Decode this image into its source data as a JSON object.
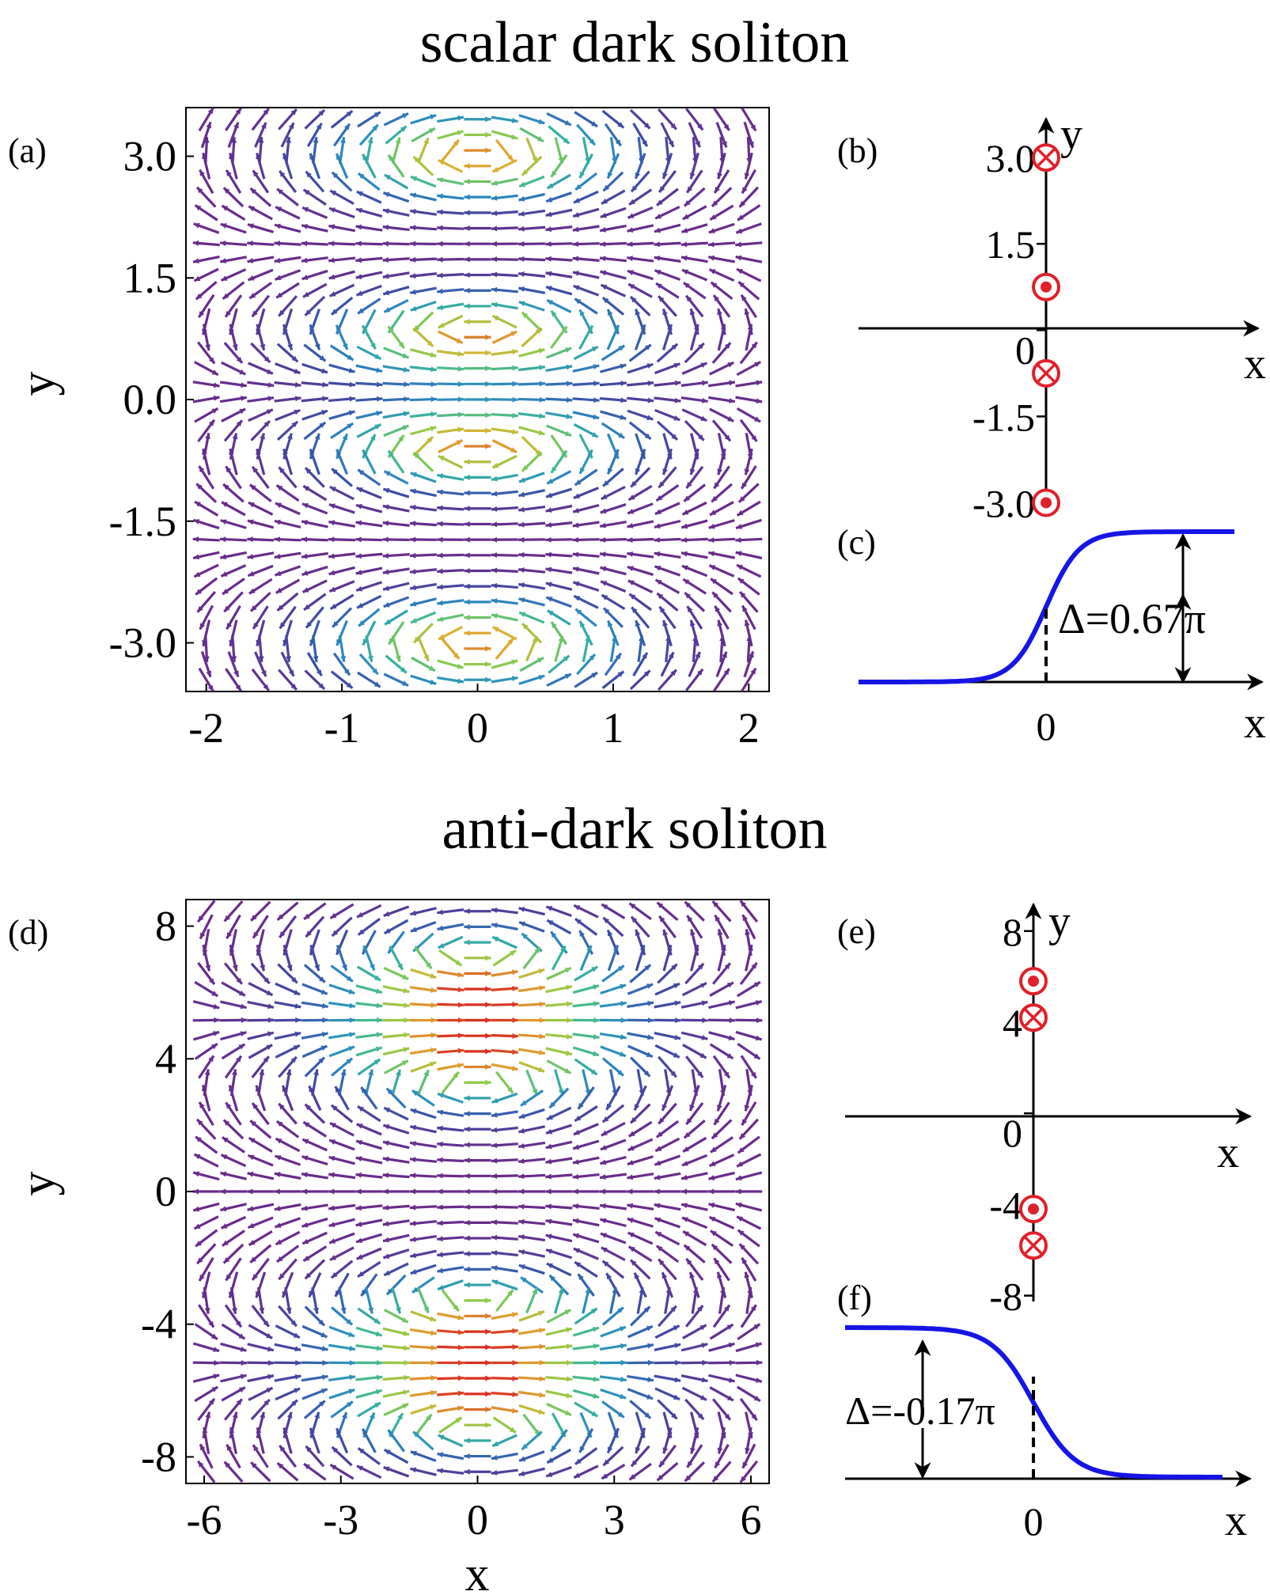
{
  "figure": {
    "top_title": "scalar dark soliton",
    "bottom_title": "anti-dark soliton"
  },
  "chart_data": [
    {
      "id": "a",
      "panel_label": "(a)",
      "type": "quiver",
      "ylabel": "y",
      "xlabel": "",
      "xlim": [
        -2.15,
        2.15
      ],
      "ylim": [
        -3.6,
        3.6
      ],
      "x_ticks": [
        "-2",
        "-1",
        "0",
        "1",
        "2"
      ],
      "x_tick_values": [
        -2,
        -1,
        0,
        1,
        2
      ],
      "y_ticks": [
        "3.0",
        "1.5",
        "0.0",
        "-1.5",
        "-3.0"
      ],
      "y_tick_values": [
        3.0,
        1.5,
        0.0,
        -1.5,
        -3.0
      ],
      "field": {
        "cols": 21,
        "rows": 37,
        "vortices": [
          {
            "x": 0,
            "y": 3.0,
            "sense": -1
          },
          {
            "x": 0,
            "y": 0.75,
            "sense": 1
          },
          {
            "x": 0,
            "y": -0.55,
            "sense": -1
          },
          {
            "x": 0,
            "y": -3.0,
            "sense": 1
          }
        ],
        "core_width": 0.55,
        "period": 2.25,
        "colormap": [
          "#6a2a8a",
          "#3a4fa8",
          "#2a8ac0",
          "#38b59a",
          "#8acb4a",
          "#e0b030",
          "#d83020"
        ]
      }
    },
    {
      "id": "b",
      "panel_label": "(b)",
      "type": "vortex-position-diagram",
      "xlabel": "x",
      "ylabel": "y",
      "y_ticks": [
        "3.0",
        "1.5",
        "0",
        "-1.5",
        "-3.0"
      ],
      "y_tick_values": [
        3.0,
        1.5,
        0,
        -1.5,
        -3.0
      ],
      "ylim": [
        -3.2,
        3.4
      ],
      "vortices": [
        {
          "y": 3.0,
          "kind": "into-page"
        },
        {
          "y": 0.75,
          "kind": "out-of-page"
        },
        {
          "y": -0.75,
          "kind": "into-page"
        },
        {
          "y": -3.0,
          "kind": "out-of-page"
        }
      ],
      "marker_color": "#e0202a"
    },
    {
      "id": "c",
      "panel_label": "(c)",
      "type": "line",
      "xlabel": "x",
      "x_ticks": [
        "0"
      ],
      "annotation": "Δ=0.67π",
      "series": [
        {
          "shape": "tanh-step-up",
          "delta_over_pi": 0.67
        }
      ],
      "line_color": "#1515e6"
    },
    {
      "id": "d",
      "panel_label": "(d)",
      "type": "quiver",
      "ylabel": "y",
      "xlabel": "x",
      "xlim": [
        -6.4,
        6.4
      ],
      "ylim": [
        -8.8,
        8.8
      ],
      "x_ticks": [
        "-6",
        "-3",
        "0",
        "3",
        "6"
      ],
      "x_tick_values": [
        -6,
        -3,
        0,
        3,
        6
      ],
      "y_ticks": [
        "8",
        "4",
        "0",
        "-4",
        "-8"
      ],
      "y_tick_values": [
        8,
        4,
        0,
        -4,
        -8
      ],
      "field": {
        "cols": 21,
        "rows": 37,
        "vortices": [
          {
            "x": 0,
            "y": 6.3,
            "sense": 1
          },
          {
            "x": 0,
            "y": 4.1,
            "sense": -1
          },
          {
            "x": 0,
            "y": -4.1,
            "sense": 1
          },
          {
            "x": 0,
            "y": -6.3,
            "sense": -1
          }
        ],
        "core_width": 1.6,
        "period": 5.5,
        "colormap": [
          "#6a2a8a",
          "#3a4fa8",
          "#2a8ac0",
          "#38b59a",
          "#8acb4a",
          "#e0b030",
          "#d83020"
        ]
      }
    },
    {
      "id": "e",
      "panel_label": "(e)",
      "type": "vortex-position-diagram",
      "xlabel": "x",
      "ylabel": "y",
      "y_ticks": [
        "8",
        "4",
        "0",
        "-4",
        "-8"
      ],
      "y_tick_values": [
        8,
        4,
        0,
        -4,
        -8
      ],
      "ylim": [
        -8.5,
        9
      ],
      "vortices": [
        {
          "y": 5.8,
          "kind": "out-of-page"
        },
        {
          "y": 4.2,
          "kind": "into-page"
        },
        {
          "y": -4.2,
          "kind": "out-of-page"
        },
        {
          "y": -5.8,
          "kind": "into-page"
        }
      ],
      "marker_color": "#e0202a"
    },
    {
      "id": "f",
      "panel_label": "(f)",
      "type": "line",
      "xlabel": "x",
      "x_ticks": [
        "0"
      ],
      "annotation": "Δ=-0.17π",
      "series": [
        {
          "shape": "tanh-step-down",
          "delta_over_pi": -0.17
        }
      ],
      "line_color": "#1515e6"
    }
  ]
}
